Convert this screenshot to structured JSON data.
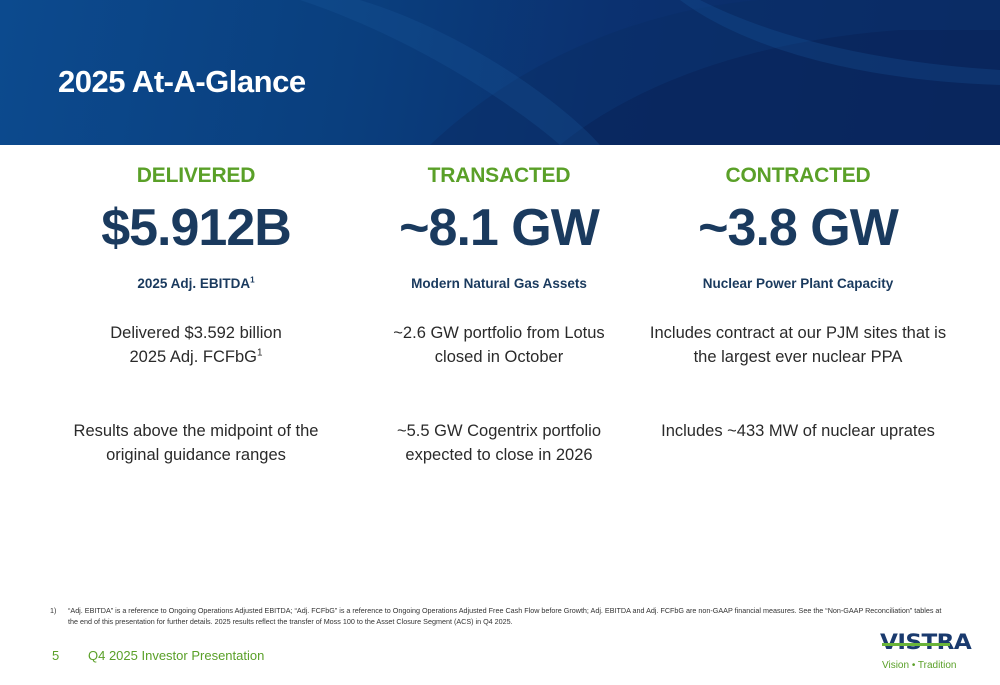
{
  "banner": {
    "title": "2025 At-A-Glance"
  },
  "columns": [
    {
      "heading": "DELIVERED",
      "metric": "$5.912B",
      "caption": "2025 Adj. EBITDA",
      "caption_sup": "1",
      "text1_line1": "Delivered $3.592 billion",
      "text1_line2": "2025 Adj. FCFbG",
      "text1_sup": "1",
      "text2_line1": "Results above the midpoint of the",
      "text2_line2": "original guidance ranges"
    },
    {
      "heading": "TRANSACTED",
      "metric": "~8.1 GW",
      "caption": "Modern Natural Gas Assets",
      "text1_line1": "~2.6 GW portfolio from Lotus",
      "text1_line2": "closed in October",
      "text2_line1": "~5.5 GW Cogentrix portfolio",
      "text2_line2": "expected to close in 2026"
    },
    {
      "heading": "CONTRACTED",
      "metric": "~3.8 GW",
      "caption": "Nuclear Power Plant Capacity",
      "text1_line1": "Includes contract at our PJM sites that is",
      "text1_line2": "the largest ever nuclear PPA",
      "text2_line1": "Includes ~433 MW of nuclear uprates"
    }
  ],
  "footnote": {
    "number": "1)",
    "text": "“Adj. EBITDA” is a reference to Ongoing Operations Adjusted EBITDA; “Adj. FCFbG” is a reference to Ongoing Operations Adjusted Free Cash Flow before Growth; Adj. EBITDA and Adj. FCFbG are non-GAAP financial measures. See the “Non-GAAP Reconciliation” tables at the end of this presentation for further details. 2025 results reflect the transfer of Moss 100 to the Asset Closure Segment (ACS) in Q4 2025."
  },
  "footer": {
    "page_number": "5",
    "label": "Q4 2025 Investor Presentation"
  },
  "logo": {
    "wordmark": "VISTRA",
    "tagline": "Vision • Tradition"
  },
  "colors": {
    "banner_blue": "#0a3f7e",
    "accent_green": "#5aa028",
    "metric_navy": "#1a3a5e"
  }
}
